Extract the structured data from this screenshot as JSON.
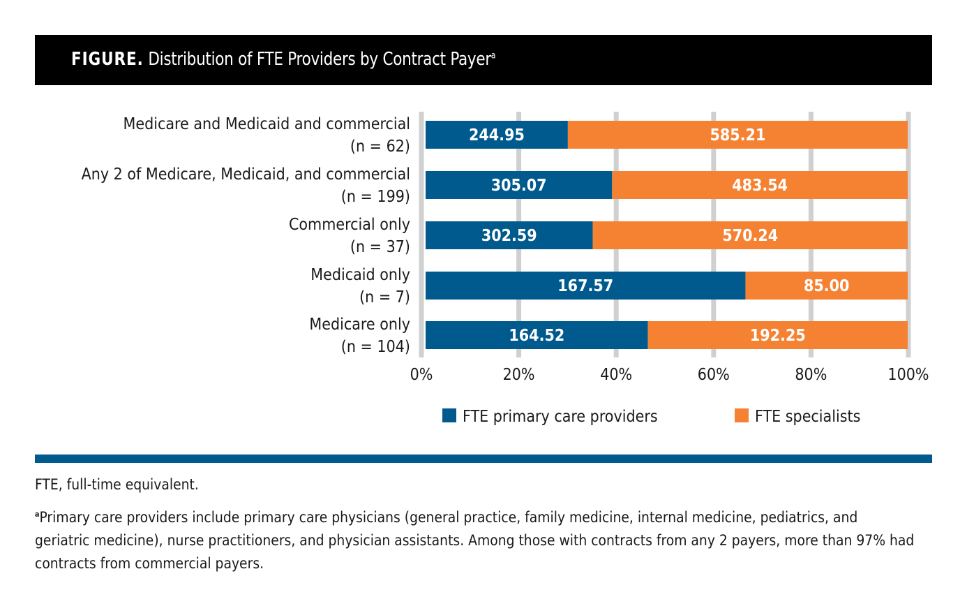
{
  "figure": {
    "label": "FIGURE.",
    "title": "Distribution of FTE Providers by Contract Payer",
    "title_superscript": "a"
  },
  "chart_data": {
    "type": "bar",
    "orientation": "horizontal",
    "stacked": true,
    "normalized_percent": true,
    "title": "Distribution of FTE Providers by Contract Payer",
    "categories": [
      {
        "label": "Medicare and Medicaid and commercial",
        "n": "(n = 62)"
      },
      {
        "label": "Any 2 of Medicare, Medicaid, and commercial",
        "n": "(n = 199)"
      },
      {
        "label": "Commercial only",
        "n": "(n = 37)"
      },
      {
        "label": "Medicaid only",
        "n": "(n = 7)"
      },
      {
        "label": "Medicare only",
        "n": "(n = 104)"
      }
    ],
    "series": [
      {
        "name": "FTE primary care providers",
        "color": "#005a8e",
        "values": [
          244.95,
          305.07,
          302.59,
          167.57,
          164.52
        ],
        "labels": [
          "244.95",
          "305.07",
          "302.59",
          "167.57",
          "164.52"
        ]
      },
      {
        "name": "FTE specialists",
        "color": "#f58232",
        "values": [
          585.21,
          483.54,
          570.24,
          85.0,
          192.25
        ],
        "labels": [
          "585.21",
          "483.54",
          "570.24",
          "85.00",
          "192.25"
        ]
      }
    ],
    "xlabel": "",
    "ylabel": "",
    "xlim": [
      0,
      100
    ],
    "x_ticks": [
      "0%",
      "20%",
      "40%",
      "60%",
      "80%",
      "100%"
    ],
    "grid": true,
    "grid_color": "#d0d0d0",
    "legend_position": "bottom-center"
  },
  "notes": {
    "abbreviation": "FTE, full-time equivalent.",
    "footnote_marker": "a",
    "footnote": "Primary care providers include primary care physicians (general practice, family medicine, internal medicine, pediatrics, and geriatric medicine), nurse practitioners, and physician assistants. Among those with contracts from any 2 payers, more than 97% had contracts from commercial payers."
  }
}
